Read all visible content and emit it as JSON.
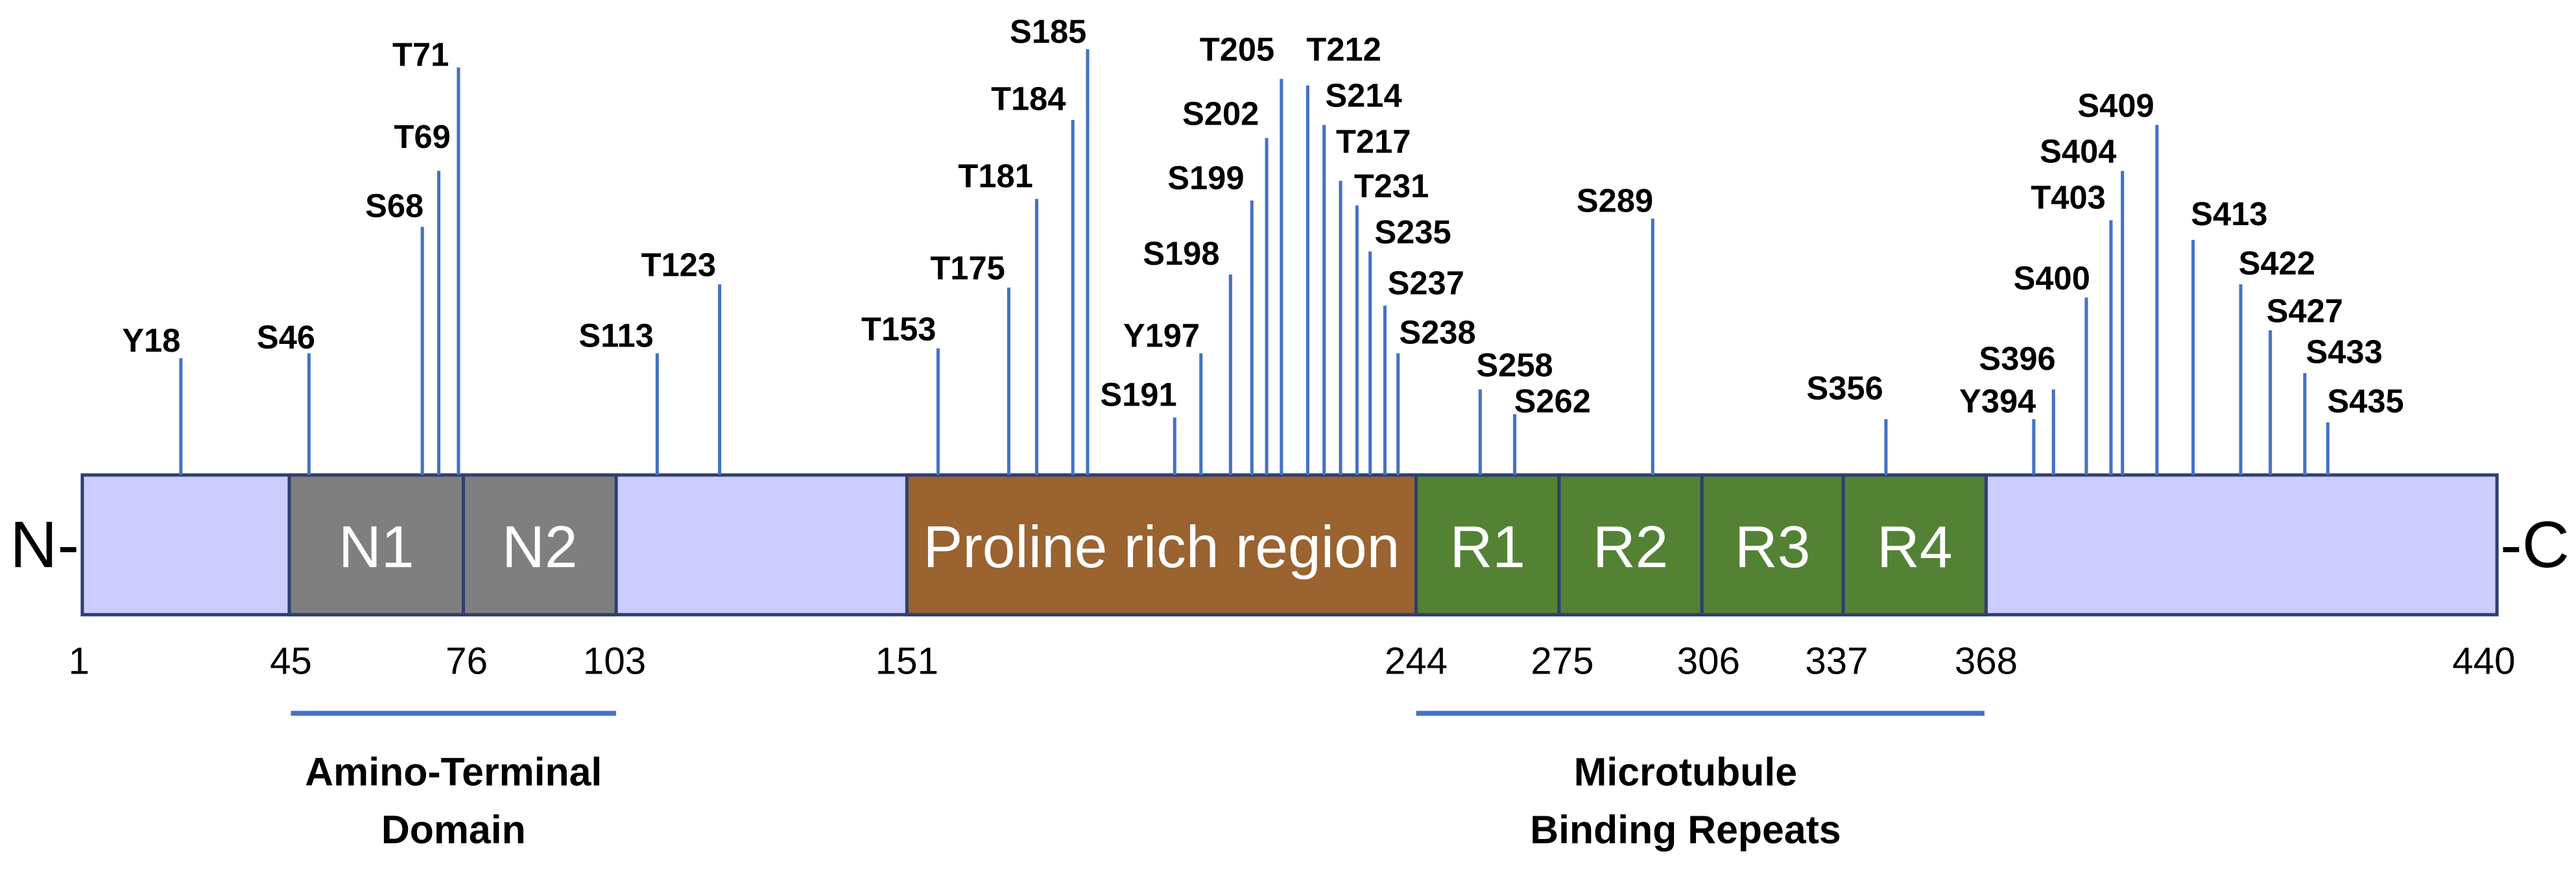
{
  "terminals": {
    "n": "N-",
    "c": "-C"
  },
  "domains": [
    {
      "label": "N1"
    },
    {
      "label": "N2"
    },
    {
      "label": "Proline rich region"
    },
    {
      "label": "R1"
    },
    {
      "label": "R2"
    },
    {
      "label": "R3"
    },
    {
      "label": "R4"
    }
  ],
  "positions": [
    1,
    45,
    76,
    103,
    151,
    244,
    275,
    306,
    337,
    368,
    440
  ],
  "sites": [
    "Y18",
    "S46",
    "S68",
    "T69",
    "T71",
    "S113",
    "T123",
    "T153",
    "T175",
    "T181",
    "T184",
    "S185",
    "S191",
    "Y197",
    "S198",
    "S199",
    "S202",
    "T205",
    "T212",
    "S214",
    "T217",
    "T231",
    "S235",
    "S237",
    "S238",
    "S258",
    "S262",
    "S289",
    "S356",
    "S396",
    "Y394",
    "S400",
    "T403",
    "S404",
    "S409",
    "S413",
    "S422",
    "S427",
    "S433",
    "S435"
  ],
  "regions": [
    {
      "lines": [
        "Amino-Terminal",
        "Domain"
      ]
    },
    {
      "lines": [
        "Microtubule",
        "Binding Repeats"
      ]
    }
  ]
}
